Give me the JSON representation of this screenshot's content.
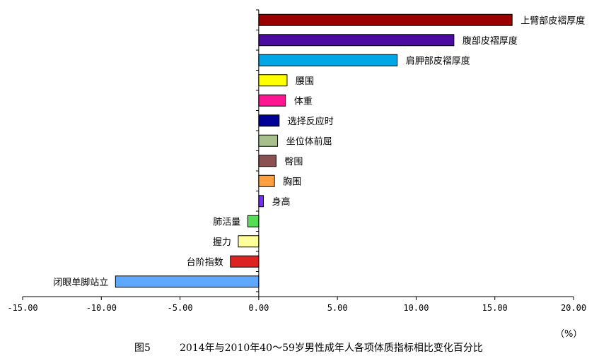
{
  "chart_data": {
    "type": "bar",
    "orientation": "horizontal",
    "categories": [
      "上臂部皮褶厚度",
      "腹部皮褶厚度",
      "肩胛部皮褶厚度",
      "腰围",
      "体重",
      "选择反应时",
      "坐位体前屈",
      "臀围",
      "胸围",
      "身高",
      "肺活量",
      "握力",
      "台阶指数",
      "闭眼单脚站立"
    ],
    "values": [
      16.1,
      12.4,
      8.8,
      1.8,
      1.7,
      1.3,
      1.2,
      1.1,
      1.0,
      0.3,
      -0.7,
      -1.3,
      -1.8,
      -9.1
    ],
    "colors": [
      "#990000",
      "#4b0aa0",
      "#00a6e6",
      "#ffff00",
      "#ff1493",
      "#000099",
      "#a8c08c",
      "#8b5050",
      "#ffa040",
      "#7b2bff",
      "#55dd55",
      "#ffff99",
      "#dd2222",
      "#5fa8ff"
    ],
    "xlim": [
      -15,
      20
    ],
    "xticks": [
      -15,
      -10,
      -5,
      0,
      5,
      10,
      15,
      20
    ],
    "xtick_labels": [
      "-15.00",
      "-10.00",
      "-5.00",
      "0.00",
      "5.00",
      "10.00",
      "15.00",
      "20.00"
    ],
    "unit": "（%）",
    "caption_fig": "图5",
    "caption_title": "2014年与2010年40～59岁男性成年人各项体质指标相比变化百分比",
    "grid": false,
    "legend": "none"
  }
}
